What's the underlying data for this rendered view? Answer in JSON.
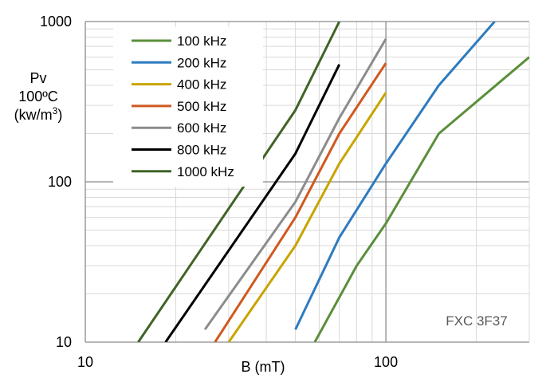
{
  "chart_data": {
    "type": "line",
    "x_scale": "log",
    "y_scale": "log",
    "xlim": [
      10,
      300
    ],
    "ylim": [
      10,
      1000
    ],
    "grid": true,
    "legend_position": "top-left",
    "ylabel_lines": [
      "Pv",
      "100ºC",
      "(kw/m"
    ],
    "ylabel_superscript": "3",
    "ylabel_close": ")",
    "xlabel": "B (mT)",
    "annotation": "FXC 3F37",
    "x_ticks": [
      {
        "value": 10,
        "label": "10"
      },
      {
        "value": 100,
        "label": "100"
      }
    ],
    "y_ticks": [
      {
        "value": 10,
        "label": "10"
      },
      {
        "value": 100,
        "label": "100"
      },
      {
        "value": 1000,
        "label": "1000"
      }
    ],
    "series": [
      {
        "name": "100 kHz",
        "color": "#5a8f3a",
        "points": [
          [
            58,
            10
          ],
          [
            80,
            30
          ],
          [
            100,
            55
          ],
          [
            150,
            200
          ],
          [
            300,
            600
          ]
        ]
      },
      {
        "name": "200 kHz",
        "color": "#2e7bbf",
        "points": [
          [
            50,
            12
          ],
          [
            70,
            45
          ],
          [
            100,
            130
          ],
          [
            150,
            400
          ],
          [
            230,
            1000
          ]
        ]
      },
      {
        "name": "400 kHz",
        "color": "#c9a400",
        "points": [
          [
            30,
            10
          ],
          [
            50,
            40
          ],
          [
            70,
            130
          ],
          [
            100,
            360
          ]
        ]
      },
      {
        "name": "500 kHz",
        "color": "#d0591f",
        "points": [
          [
            27,
            10
          ],
          [
            50,
            60
          ],
          [
            70,
            200
          ],
          [
            100,
            550
          ]
        ]
      },
      {
        "name": "600 kHz",
        "color": "#8c8c8c",
        "points": [
          [
            25,
            12
          ],
          [
            50,
            75
          ],
          [
            70,
            250
          ],
          [
            100,
            780
          ]
        ]
      },
      {
        "name": "800 kHz",
        "color": "#000000",
        "points": [
          [
            18.5,
            10
          ],
          [
            50,
            150
          ],
          [
            70,
            540
          ]
        ]
      },
      {
        "name": "1000 kHz",
        "color": "#3f6425",
        "points": [
          [
            15,
            10
          ],
          [
            50,
            280
          ],
          [
            70,
            1000
          ]
        ]
      }
    ]
  }
}
